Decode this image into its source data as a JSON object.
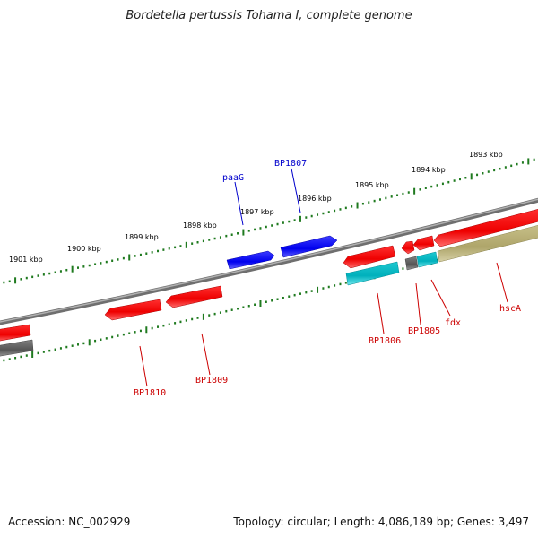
{
  "header": {
    "title": "Bordetella pertussis Tohama I, complete genome"
  },
  "footer": {
    "accession": "Accession: NC_002929",
    "summary": "Topology: circular; Length: 4,086,189 bp; Genes: 3,497"
  },
  "colors": {
    "backbone": "#8a8a8a",
    "tick": "#1f7a1f",
    "plus_strand_label": "#0000cc",
    "minus_strand_label": "#cc0000",
    "cds_blue": "#0000ee",
    "cds_red": "#ee0000",
    "cds_cyan": "#00b8c8",
    "cds_grey": "#666666",
    "cds_olive": "#b8b078"
  },
  "ruler": {
    "outer_labels": [
      "1901 kbp",
      "1900 kbp",
      "1899 kbp",
      "1898 kbp",
      "1897 kbp",
      "1896 kbp",
      "1895 kbp",
      "1894 kbp",
      "1893 kbp"
    ]
  },
  "genes": {
    "plus_strand": [
      {
        "name": "paaG",
        "color": "cds_blue",
        "direction": "forward"
      },
      {
        "name": "BP1807",
        "color": "cds_blue",
        "direction": "forward"
      }
    ],
    "minus_strand": [
      {
        "name": "BP1810",
        "color": "cds_red",
        "direction": "reverse"
      },
      {
        "name": "BP1809",
        "color": "cds_red",
        "direction": "reverse"
      },
      {
        "name": "BP1806",
        "color": "cds_red",
        "direction": "reverse"
      },
      {
        "name": "BP1805",
        "color": "cds_red",
        "direction": "reverse"
      },
      {
        "name": "fdx",
        "color": "cds_red",
        "direction": "reverse"
      },
      {
        "name": "hscA",
        "color": "cds_red",
        "direction": "reverse"
      }
    ]
  }
}
